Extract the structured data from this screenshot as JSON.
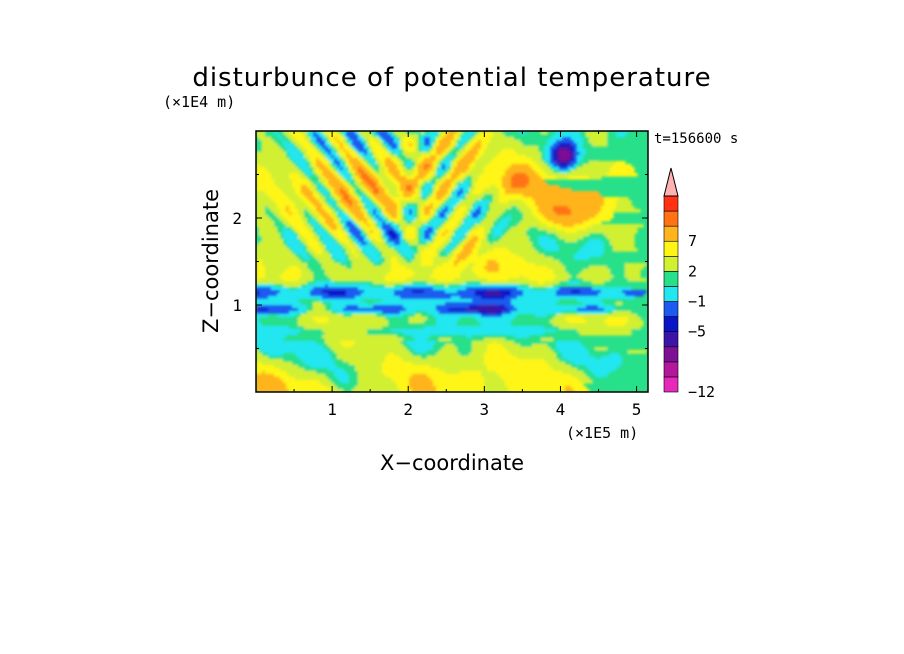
{
  "chart_data": {
    "type": "heatmap",
    "title": "disturbunce of potential temperature",
    "xlabel": "X−coordinate",
    "ylabel": "Z−coordinate",
    "x_unit": "(×1E5 m)",
    "y_unit": "(×1E4 m)",
    "time_label": "t=156600 s",
    "xlim": [
      0,
      5.15
    ],
    "ylim": [
      0,
      3.0
    ],
    "x_ticks": [
      1,
      2,
      3,
      4,
      5
    ],
    "y_ticks": [
      1,
      2
    ],
    "x_tick_labels": [
      "1",
      "2",
      "3",
      "4",
      "5"
    ],
    "y_tick_labels": [
      "1",
      "2"
    ],
    "levels": [
      -12,
      -10,
      -8,
      -6,
      -5,
      -3,
      -1,
      0,
      2,
      4,
      7,
      9,
      11
    ],
    "level_colors": [
      "#e629b8",
      "#b3179c",
      "#7d1094",
      "#3c14a8",
      "#0a14c8",
      "#1e5af0",
      "#22e6f0",
      "#28e08a",
      "#d2f032",
      "#fff514",
      "#ffb41e",
      "#ff7314",
      "#ff3214",
      "#ffb2b2"
    ],
    "colorbar_labels": [
      {
        "value": 7,
        "text": "7"
      },
      {
        "value": 2,
        "text": "2"
      },
      {
        "value": -1,
        "text": "−1"
      },
      {
        "value": -5,
        "text": "−5"
      },
      {
        "value": -12,
        "text": "−12"
      }
    ],
    "legend": "right",
    "grid": false
  }
}
